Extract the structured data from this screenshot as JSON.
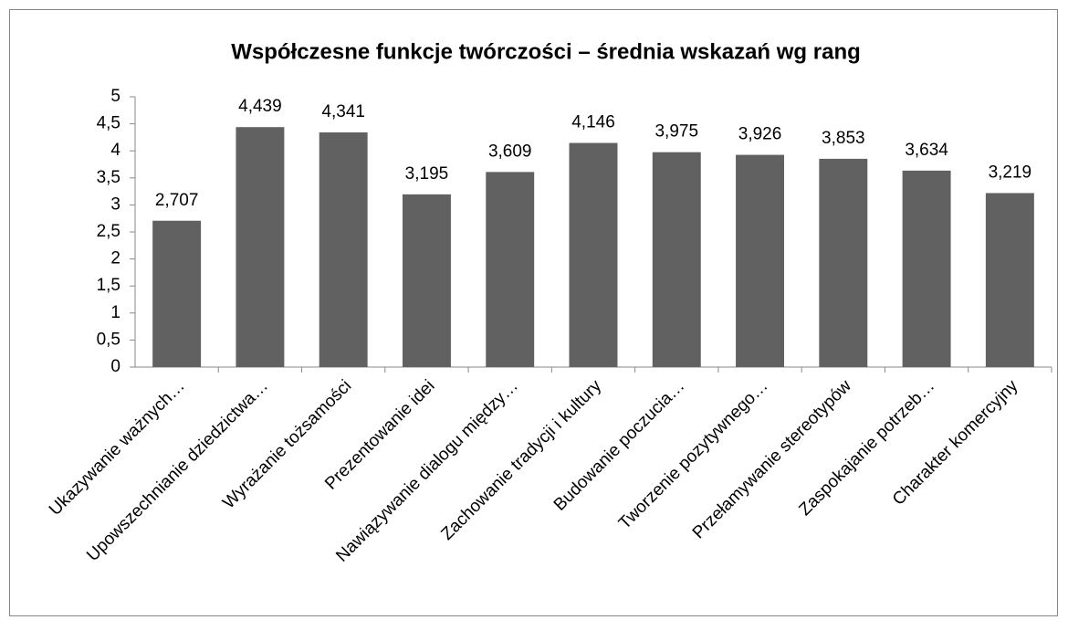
{
  "chart_data": {
    "type": "bar",
    "title": "Współczesne funkcje twórczości – średnia wskazań wg rang",
    "categories": [
      "Ukazywanie ważnych…",
      "Upowszechnianie dziedzictwa…",
      "Wyrażanie tożsamości",
      "Prezentowanie idei",
      "Nawiązywanie dialogu między…",
      "Zachowanie tradycji i kultury",
      "Budowanie poczucia…",
      "Tworzenie pozytywnego…",
      "Przełamywanie stereotypów",
      "Zaspokajanie potrzeb…",
      "Charakter komercyjny"
    ],
    "values": [
      2.707,
      4.439,
      4.341,
      3.195,
      3.609,
      4.146,
      3.975,
      3.926,
      3.853,
      3.634,
      3.219
    ],
    "value_labels": [
      "2,707",
      "4,439",
      "4,341",
      "3,195",
      "3,609",
      "4,146",
      "3,975",
      "3,926",
      "3,853",
      "3,634",
      "3,219"
    ],
    "color": "#616161",
    "ylim": [
      0,
      5
    ],
    "yticks": [
      0,
      {
        "value": 0.5,
        "label": "0,5"
      },
      1,
      {
        "value": 1.5,
        "label": "1,5"
      },
      2,
      {
        "value": 2.5,
        "label": "2,5"
      },
      3,
      {
        "value": 3.5,
        "label": "3,5"
      },
      4,
      {
        "value": 4.5,
        "label": "4,5"
      },
      5
    ],
    "grid": false
  }
}
